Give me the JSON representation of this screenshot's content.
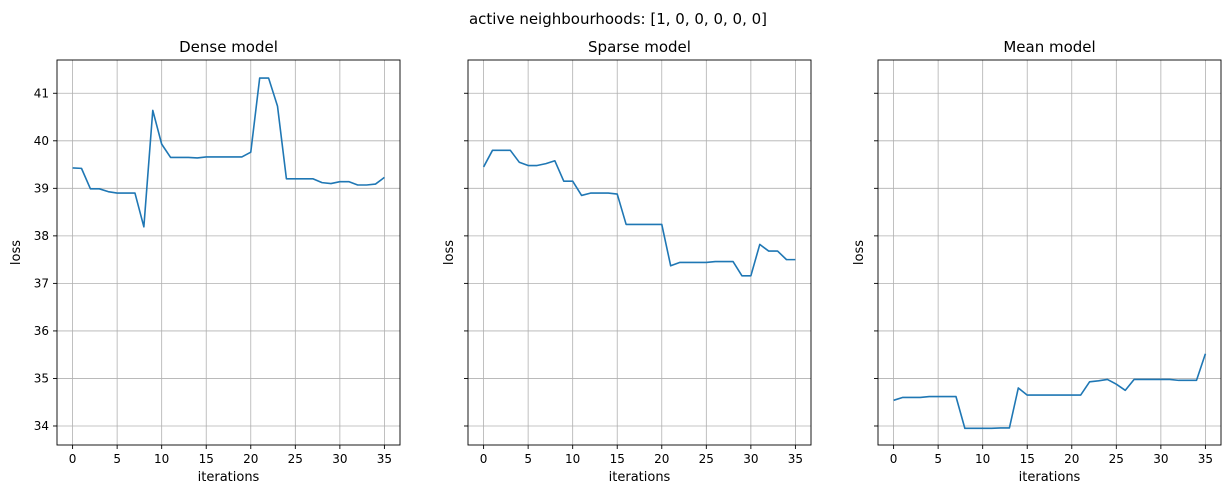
{
  "suptitle": "active neighbourhoods: [1, 0, 0, 0, 0, 0]",
  "chart_data": [
    {
      "type": "line",
      "title": "Dense model",
      "xlabel": "iterations",
      "ylabel": "loss",
      "xlim": [
        -1.75,
        36.75
      ],
      "ylim": [
        33.6,
        41.7
      ],
      "xticks": [
        0,
        5,
        10,
        15,
        20,
        25,
        30,
        35
      ],
      "yticks": [
        34,
        35,
        36,
        37,
        38,
        39,
        40,
        41
      ],
      "show_ytick_labels": true,
      "grid": true,
      "color": "#1f77b4",
      "x": [
        0,
        1,
        2,
        3,
        4,
        5,
        6,
        7,
        8,
        9,
        10,
        11,
        12,
        13,
        14,
        15,
        16,
        17,
        18,
        19,
        20,
        21,
        22,
        23,
        24,
        25,
        26,
        27,
        28,
        29,
        30,
        31,
        32,
        33,
        34,
        35
      ],
      "y": [
        39.43,
        39.42,
        38.99,
        38.99,
        38.93,
        38.9,
        38.9,
        38.9,
        38.19,
        40.64,
        39.93,
        39.65,
        39.65,
        39.65,
        39.64,
        39.66,
        39.66,
        39.66,
        39.66,
        39.66,
        39.76,
        41.32,
        41.32,
        40.73,
        39.2,
        39.2,
        39.2,
        39.2,
        39.12,
        39.1,
        39.14,
        39.14,
        39.07,
        39.07,
        39.09,
        39.23
      ]
    },
    {
      "type": "line",
      "title": "Sparse model",
      "xlabel": "iterations",
      "ylabel": "loss",
      "xlim": [
        -1.75,
        36.75
      ],
      "ylim": [
        33.6,
        41.7
      ],
      "xticks": [
        0,
        5,
        10,
        15,
        20,
        25,
        30,
        35
      ],
      "yticks": [
        34,
        35,
        36,
        37,
        38,
        39,
        40,
        41
      ],
      "show_ytick_labels": false,
      "grid": true,
      "color": "#1f77b4",
      "x": [
        0,
        1,
        2,
        3,
        4,
        5,
        6,
        7,
        8,
        9,
        10,
        11,
        12,
        13,
        14,
        15,
        16,
        17,
        18,
        19,
        20,
        21,
        22,
        23,
        24,
        25,
        26,
        27,
        28,
        29,
        30,
        31,
        32,
        33,
        34,
        35
      ],
      "y": [
        39.45,
        39.8,
        39.8,
        39.8,
        39.55,
        39.48,
        39.48,
        39.52,
        39.58,
        39.15,
        39.15,
        38.85,
        38.9,
        38.9,
        38.9,
        38.88,
        38.24,
        38.24,
        38.24,
        38.24,
        38.24,
        37.37,
        37.44,
        37.44,
        37.44,
        37.44,
        37.46,
        37.46,
        37.46,
        37.16,
        37.16,
        37.82,
        37.68,
        37.68,
        37.5,
        37.5
      ]
    },
    {
      "type": "line",
      "title": "Mean model",
      "xlabel": "iterations",
      "ylabel": "loss",
      "xlim": [
        -1.75,
        36.75
      ],
      "ylim": [
        33.6,
        41.7
      ],
      "xticks": [
        0,
        5,
        10,
        15,
        20,
        25,
        30,
        35
      ],
      "yticks": [
        34,
        35,
        36,
        37,
        38,
        39,
        40,
        41
      ],
      "show_ytick_labels": false,
      "grid": true,
      "color": "#1f77b4",
      "x": [
        0,
        1,
        2,
        3,
        4,
        5,
        6,
        7,
        8,
        9,
        10,
        11,
        12,
        13,
        14,
        15,
        16,
        17,
        18,
        19,
        20,
        21,
        22,
        23,
        24,
        25,
        26,
        27,
        28,
        29,
        30,
        31,
        32,
        33,
        34,
        35
      ],
      "y": [
        34.54,
        34.6,
        34.6,
        34.6,
        34.62,
        34.62,
        34.62,
        34.62,
        33.95,
        33.95,
        33.95,
        33.95,
        33.96,
        33.96,
        34.8,
        34.65,
        34.65,
        34.65,
        34.65,
        34.65,
        34.65,
        34.65,
        34.93,
        34.95,
        34.98,
        34.88,
        34.75,
        34.98,
        34.98,
        34.98,
        34.98,
        34.98,
        34.96,
        34.96,
        34.96,
        35.52
      ]
    }
  ]
}
